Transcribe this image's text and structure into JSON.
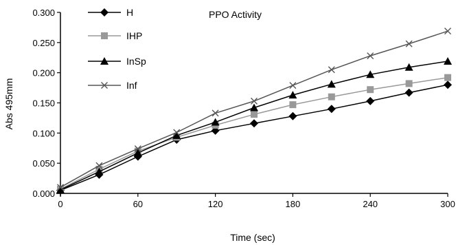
{
  "chart_data": {
    "type": "line",
    "title": "PPO  Activity",
    "xlabel": "Time (sec)",
    "ylabel": "Abs 495mm",
    "xlim": [
      0,
      300
    ],
    "ylim": [
      0,
      0.3
    ],
    "x_ticks": [
      0,
      60,
      120,
      180,
      240,
      300
    ],
    "x_tick_labels": [
      "0",
      "60",
      "120",
      "180",
      "240",
      "300"
    ],
    "y_ticks": [
      0,
      0.05,
      0.1,
      0.15,
      0.2,
      0.25,
      0.3
    ],
    "y_tick_labels": [
      "0.000",
      "0.050",
      "0.100",
      "0.150",
      "0.200",
      "0.250",
      "0.300"
    ],
    "grid": false,
    "legend_position": "top-left",
    "x": [
      0,
      30,
      60,
      90,
      120,
      150,
      180,
      210,
      240,
      270,
      300
    ],
    "series": [
      {
        "name": "H",
        "marker": "diamond",
        "color": "#000000",
        "values": [
          0.005,
          0.031,
          0.061,
          0.089,
          0.104,
          0.116,
          0.128,
          0.14,
          0.153,
          0.167,
          0.18
        ]
      },
      {
        "name": "IHP",
        "marker": "square",
        "color": "#999999",
        "values": [
          0.007,
          0.04,
          0.07,
          0.093,
          0.113,
          0.131,
          0.147,
          0.16,
          0.172,
          0.182,
          0.192
        ]
      },
      {
        "name": "InSp",
        "marker": "triangle",
        "color": "#000000",
        "values": [
          0.006,
          0.036,
          0.067,
          0.096,
          0.118,
          0.142,
          0.163,
          0.181,
          0.197,
          0.209,
          0.219
        ]
      },
      {
        "name": "Inf",
        "marker": "x",
        "color": "#555555",
        "values": [
          0.01,
          0.046,
          0.074,
          0.101,
          0.133,
          0.153,
          0.179,
          0.205,
          0.228,
          0.248,
          0.269
        ]
      }
    ]
  }
}
